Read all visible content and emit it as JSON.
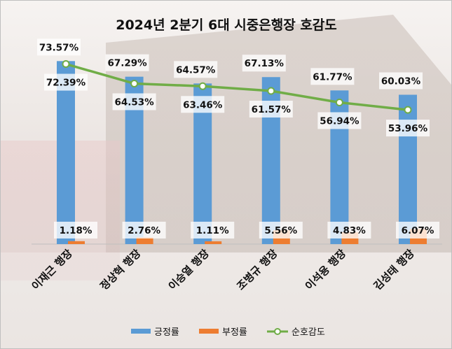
{
  "chart_data": {
    "type": "bar",
    "title": "2024년 2분기 6대 시중은행장 호감도",
    "categories": [
      "이재근 행장",
      "정상혁 행장",
      "이승열 행장",
      "조병규 행장",
      "이석용 행장",
      "김성태 행장"
    ],
    "series": [
      {
        "name": "긍정률",
        "type": "bar",
        "values": [
          73.57,
          67.29,
          64.57,
          67.13,
          61.77,
          60.03
        ],
        "labels": [
          "73.57%",
          "67.29%",
          "64.57%",
          "67.13%",
          "61.77%",
          "60.03%"
        ]
      },
      {
        "name": "부정률",
        "type": "bar",
        "values": [
          1.18,
          2.76,
          1.11,
          5.56,
          4.83,
          6.07
        ],
        "labels": [
          "1.18%",
          "2.76%",
          "1.11%",
          "5.56%",
          "4.83%",
          "6.07%"
        ]
      },
      {
        "name": "순호감도",
        "type": "line",
        "values": [
          72.39,
          64.53,
          63.46,
          61.57,
          56.94,
          53.96
        ],
        "labels": [
          "72.39%",
          "64.53%",
          "63.46%",
          "61.57%",
          "56.94%",
          "53.96%"
        ]
      }
    ],
    "ylim": [
      0,
      100
    ],
    "legend": "bottom",
    "colors": {
      "positive": "#5b9bd5",
      "negative": "#ed7d31",
      "net": "#70ad47"
    }
  }
}
